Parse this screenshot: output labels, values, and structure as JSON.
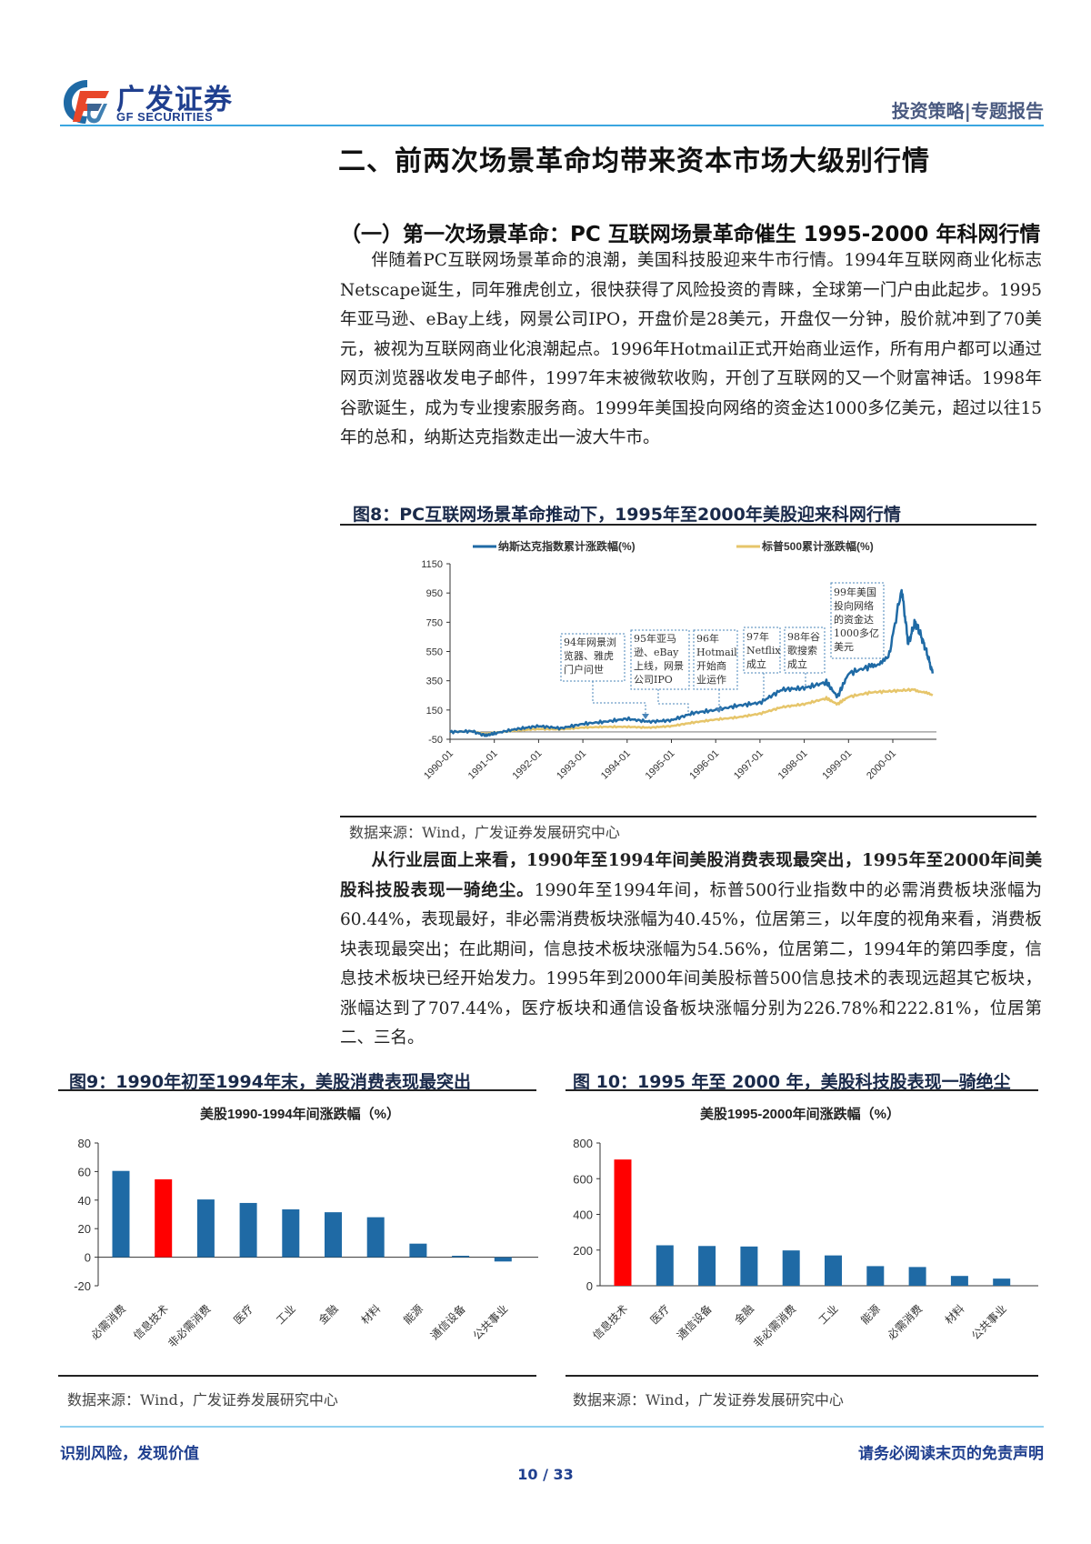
{
  "header": {
    "logo_cn": "广发证券",
    "logo_en": "GF SECURITIES",
    "report_type": "投资策略|专题报告"
  },
  "section": {
    "title": "二、前两次场景革命均带来资本市场大级别行情",
    "subsection_title": "（一）第一次场景革命：PC 互联网场景革命催生 1995-2000 年科网行情",
    "paragraph1": "伴随着PC互联网场景革命的浪潮，美国科技股迎来牛市行情。1994年互联网商业化标志Netscape诞生，同年雅虎创立，很快获得了风险投资的青睐，全球第一门户由此起步。1995年亚马逊、eBay上线，网景公司IPO，开盘价是28美元，开盘仅一分钟，股价就冲到了70美元，被视为互联网商业化浪潮起点。1996年Hotmail正式开始商业运作，所有用户都可以通过网页浏览器收发电子邮件，1997年末被微软收购，开创了互联网的又一个财富神话。1998年谷歌诞生，成为专业搜索服务商。1999年美国投向网络的资金达1000多亿美元，超过以往15年的总和，纳斯达克指数走出一波大牛市。",
    "paragraph2_bold": "从行业层面上来看，1990年至1994年间美股消费表现最突出，1995年至2000年间美股科技股表现一骑绝尘。",
    "paragraph2_rest": "1990年至1994年间，标普500行业指数中的必需消费板块涨幅为60.44%，表现最好，非必需消费板块涨幅为40.45%，位居第三，以年度的视角来看，消费板块表现最突出；在此期间，信息技术板块涨幅为54.56%，位居第二，1994年的第四季度，信息技术板块已经开始发力。1995年到2000年间美股标普500信息技术的表现远超其它板块，涨幅达到了707.44%，医疗板块和通信设备板块涨幅分别为226.78%和222.81%，位居第二、三名。"
  },
  "figures": {
    "fig8": {
      "title": "图8：PC互联网场景革命推动下，1995年至2000年美股迎来科网行情",
      "source": "数据来源：Wind，广发证券发展研究中心"
    },
    "fig9": {
      "title": "图9：1990年初至1994年末，美股消费表现最突出",
      "source": "数据来源：Wind，广发证券发展研究中心"
    },
    "fig10": {
      "title": "图 10：1995 年至 2000 年，美股科技股表现一骑绝尘",
      "source": "数据来源：Wind，广发证券发展研究中心"
    }
  },
  "chart_data": [
    {
      "type": "line",
      "title": "",
      "legend": [
        "纳斯达克指数累计涨跌幅(%)",
        "标普500累计涨跌幅(%)"
      ],
      "legend_position": "top",
      "ylim": [
        -50,
        1150
      ],
      "yticks": [
        -50,
        150,
        350,
        550,
        750,
        950,
        1150
      ],
      "xticks": [
        "1990-01",
        "1991-01",
        "1992-01",
        "1993-01",
        "1994-01",
        "1995-01",
        "1996-01",
        "1997-01",
        "1998-01",
        "1999-01",
        "2000-01"
      ],
      "colors": {
        "nasdaq": "#1f6aa5",
        "sp500": "#e6c56a"
      },
      "series": [
        {
          "name": "纳斯达克指数累计涨跌幅(%)",
          "x": [
            1990.0,
            1990.5,
            1990.8,
            1991.0,
            1991.5,
            1992.0,
            1992.5,
            1993.0,
            1993.5,
            1994.0,
            1994.5,
            1995.0,
            1995.5,
            1996.0,
            1996.5,
            1997.0,
            1997.5,
            1998.0,
            1998.5,
            1998.75,
            1999.0,
            1999.5,
            1999.9,
            2000.2,
            2000.35,
            2000.5,
            2000.6,
            2000.75,
            2000.9
          ],
          "values": [
            0,
            5,
            -25,
            -10,
            20,
            40,
            25,
            55,
            70,
            90,
            70,
            80,
            130,
            150,
            180,
            200,
            290,
            300,
            340,
            240,
            400,
            450,
            500,
            980,
            600,
            750,
            690,
            560,
            400
          ]
        },
        {
          "name": "标普500累计涨跌幅(%)",
          "x": [
            1990.0,
            1990.5,
            1990.8,
            1991.0,
            1991.5,
            1992.0,
            1992.5,
            1993.0,
            1993.5,
            1994.0,
            1994.5,
            1995.0,
            1995.5,
            1996.0,
            1996.5,
            1997.0,
            1997.5,
            1998.0,
            1998.5,
            1998.75,
            1999.0,
            1999.5,
            2000.0,
            2000.5,
            2000.9
          ],
          "values": [
            0,
            5,
            -15,
            -5,
            10,
            20,
            18,
            30,
            35,
            35,
            30,
            40,
            65,
            85,
            100,
            125,
            170,
            190,
            230,
            190,
            240,
            270,
            280,
            290,
            250
          ]
        }
      ],
      "annotations": [
        {
          "text": "94年网景浏览器、雅虎门户问世",
          "year": 1994.7
        },
        {
          "text": "95年亚马逊、eBay上线，网景公司IPO",
          "year": 1995.6
        },
        {
          "text": "96年Hotmail开始商业运作",
          "year": 1996.1
        },
        {
          "text": "97年Netflix成立",
          "year": 1997.1
        },
        {
          "text": "98年谷歌搜索成立",
          "year": 1998.1
        },
        {
          "text": "99年美国投向网络的资金达1000多亿美元",
          "year": 1999.3
        }
      ]
    },
    {
      "type": "bar",
      "title": "美股1990-1994年间涨跌幅（%）",
      "categories": [
        "必需消费",
        "信息技术",
        "非必需消费",
        "医疗",
        "工业",
        "金融",
        "材料",
        "能源",
        "通信设备",
        "公共事业"
      ],
      "values": [
        60.44,
        54.56,
        40.45,
        38,
        33.5,
        31.5,
        28,
        9.5,
        1,
        -3
      ],
      "highlight_index": 1,
      "colors": {
        "default": "#1f6aa5",
        "highlight": "#ff0000"
      },
      "ylim": [
        -20,
        80
      ],
      "yticks": [
        -20,
        0,
        20,
        40,
        60,
        80
      ],
      "xlabel": "",
      "ylabel": ""
    },
    {
      "type": "bar",
      "title": "美股1995-2000年间涨跌幅（%）",
      "categories": [
        "信息技术",
        "医疗",
        "通信设备",
        "金融",
        "非必需消费",
        "工业",
        "能源",
        "必需消费",
        "材料",
        "公共事业"
      ],
      "values": [
        707.44,
        226.78,
        222.81,
        220,
        198,
        170,
        110,
        105,
        55,
        40
      ],
      "highlight_index": 0,
      "colors": {
        "default": "#1f6aa5",
        "highlight": "#ff0000"
      },
      "ylim": [
        0,
        800
      ],
      "yticks": [
        0,
        200,
        400,
        600,
        800
      ],
      "xlabel": "",
      "ylabel": ""
    }
  ],
  "footer": {
    "left": "识别风险，发现价值",
    "right": "请务必阅读末页的免责声明",
    "page": "10 / 33"
  }
}
